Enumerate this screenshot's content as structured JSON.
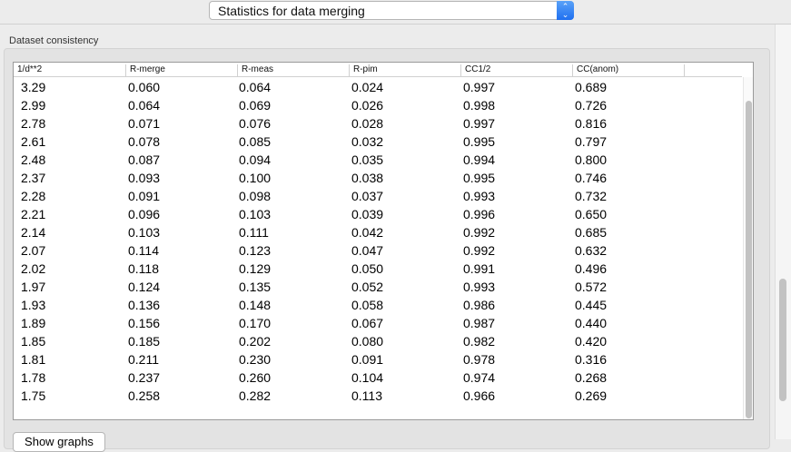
{
  "selector": {
    "value": "Statistics for data merging"
  },
  "group": {
    "label": "Dataset consistency"
  },
  "table": {
    "columns": [
      "1/d**2",
      "R-merge",
      "R-meas",
      "R-pim",
      "CC1/2",
      "CC(anom)"
    ],
    "rows": [
      [
        "3.29",
        "0.060",
        "0.064",
        "0.024",
        "0.997",
        "0.689"
      ],
      [
        "2.99",
        "0.064",
        "0.069",
        "0.026",
        "0.998",
        "0.726"
      ],
      [
        "2.78",
        "0.071",
        "0.076",
        "0.028",
        "0.997",
        "0.816"
      ],
      [
        "2.61",
        "0.078",
        "0.085",
        "0.032",
        "0.995",
        "0.797"
      ],
      [
        "2.48",
        "0.087",
        "0.094",
        "0.035",
        "0.994",
        "0.800"
      ],
      [
        "2.37",
        "0.093",
        "0.100",
        "0.038",
        "0.995",
        "0.746"
      ],
      [
        "2.28",
        "0.091",
        "0.098",
        "0.037",
        "0.993",
        "0.732"
      ],
      [
        "2.21",
        "0.096",
        "0.103",
        "0.039",
        "0.996",
        "0.650"
      ],
      [
        "2.14",
        "0.103",
        "0.111",
        "0.042",
        "0.992",
        "0.685"
      ],
      [
        "2.07",
        "0.114",
        "0.123",
        "0.047",
        "0.992",
        "0.632"
      ],
      [
        "2.02",
        "0.118",
        "0.129",
        "0.050",
        "0.991",
        "0.496"
      ],
      [
        "1.97",
        "0.124",
        "0.135",
        "0.052",
        "0.993",
        "0.572"
      ],
      [
        "1.93",
        "0.136",
        "0.148",
        "0.058",
        "0.986",
        "0.445"
      ],
      [
        "1.89",
        "0.156",
        "0.170",
        "0.067",
        "0.987",
        "0.440"
      ],
      [
        "1.85",
        "0.185",
        "0.202",
        "0.080",
        "0.982",
        "0.420"
      ],
      [
        "1.81",
        "0.211",
        "0.230",
        "0.091",
        "0.978",
        "0.316"
      ],
      [
        "1.78",
        "0.237",
        "0.260",
        "0.104",
        "0.974",
        "0.268"
      ],
      [
        "1.75",
        "0.258",
        "0.282",
        "0.113",
        "0.966",
        "0.269"
      ]
    ]
  },
  "buttons": {
    "show_graphs": "Show graphs"
  },
  "icons": {
    "selector": "up-down-chevron-icon"
  }
}
